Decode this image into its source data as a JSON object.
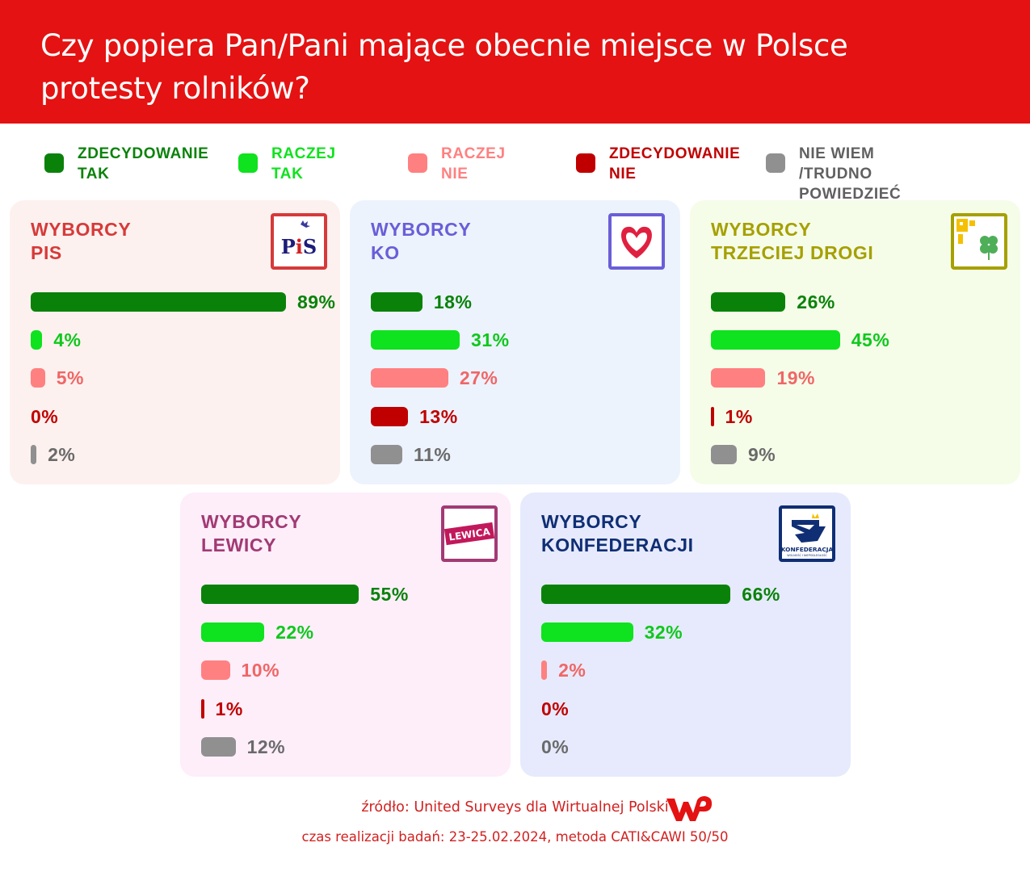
{
  "title": "Czy popiera Pan/Pani mające obecnie miejsce w Polsce protesty rolników?",
  "colors": {
    "header_bg": "#e41212",
    "zdecydowanie_tak": "#0a820a",
    "raczej_tak": "#0fe21e",
    "raczej_nie": "#ff8080",
    "zdecydowanie_nie": "#c00000",
    "nie_wiem": "#909090"
  },
  "legend": [
    {
      "label": "ZDECYDOWANIE\nTAK",
      "color": "#0a820a"
    },
    {
      "label": "RACZEJ\nTAK",
      "color": "#0fe21e"
    },
    {
      "label": "RACZEJ\nNIE",
      "color": "#ff8080"
    },
    {
      "label": "ZDECYDOWANIE\nNIE",
      "color": "#c00000"
    },
    {
      "label": "NIE WIEM\n/TRUDNO POWIEDZIEĆ",
      "color": "#909090"
    }
  ],
  "chart_data": [
    {
      "type": "bar",
      "title": "WYBORCY PIS",
      "title_lines": [
        "WYBORCY",
        "PIS"
      ],
      "logo": "PiS",
      "accent": "#d63a3a",
      "background": "#fdf1ef",
      "categories": [
        "ZDECYDOWANIE TAK",
        "RACZEJ TAK",
        "RACZEJ NIE",
        "ZDECYDOWANIE NIE",
        "NIE WIEM /TRUDNO POWIEDZIEĆ"
      ],
      "values": [
        89,
        4,
        5,
        0,
        2
      ],
      "labels": [
        "89%",
        "4%",
        "5%",
        "0%",
        "2%"
      ],
      "unit": "%"
    },
    {
      "type": "bar",
      "title": "WYBORCY KO",
      "title_lines": [
        "WYBORCY",
        "KO"
      ],
      "logo": "heart-logo",
      "accent": "#6a5ed8",
      "background": "#ecf3fd",
      "categories": [
        "ZDECYDOWANIE TAK",
        "RACZEJ TAK",
        "RACZEJ NIE",
        "ZDECYDOWANIE NIE",
        "NIE WIEM /TRUDNO POWIEDZIEĆ"
      ],
      "values": [
        18,
        31,
        27,
        13,
        11
      ],
      "labels": [
        "18%",
        "31%",
        "27%",
        "13%",
        "11%"
      ],
      "unit": "%"
    },
    {
      "type": "bar",
      "title": "WYBORCY TRZECIEJ DROGI",
      "title_lines": [
        "WYBORCY",
        "TRZECIEJ DROGI"
      ],
      "logo": "clover-logo",
      "accent": "#a6a000",
      "background": "#f5fde9",
      "categories": [
        "ZDECYDOWANIE TAK",
        "RACZEJ TAK",
        "RACZEJ NIE",
        "ZDECYDOWANIE NIE",
        "NIE WIEM /TRUDNO POWIEDZIEĆ"
      ],
      "values": [
        26,
        45,
        19,
        1,
        9
      ],
      "labels": [
        "26%",
        "45%",
        "19%",
        "1%",
        "9%"
      ],
      "unit": "%"
    },
    {
      "type": "bar",
      "title": "WYBORCY LEWICY",
      "title_lines": [
        "WYBORCY",
        "LEWICY"
      ],
      "logo": "LEWICA",
      "accent": "#a23a74",
      "background": "#fdeefa",
      "categories": [
        "ZDECYDOWANIE TAK",
        "RACZEJ TAK",
        "RACZEJ NIE",
        "ZDECYDOWANIE NIE",
        "NIE WIEM /TRUDNO POWIEDZIEĆ"
      ],
      "values": [
        55,
        22,
        10,
        1,
        12
      ],
      "labels": [
        "55%",
        "22%",
        "10%",
        "1%",
        "12%"
      ],
      "unit": "%"
    },
    {
      "type": "bar",
      "title": "WYBORCY KONFEDERACJI",
      "title_lines": [
        "WYBORCY",
        "KONFEDERACJI"
      ],
      "logo": "KONFEDERACJA",
      "accent": "#0f2e74",
      "background": "#e6eafc",
      "categories": [
        "ZDECYDOWANIE TAK",
        "RACZEJ TAK",
        "RACZEJ NIE",
        "ZDECYDOWANIE NIE",
        "NIE WIEM /TRUDNO POWIEDZIEĆ"
      ],
      "values": [
        66,
        32,
        2,
        0,
        0
      ],
      "labels": [
        "66%",
        "32%",
        "2%",
        "0%",
        "0%"
      ],
      "unit": "%"
    }
  ],
  "footer": {
    "source": "źródło: United Surveys dla Wirtualnej Polski",
    "method": "czas realizacji badań: 23-25.02.2024, metoda CATI&CAWI 50/50",
    "brand_logo": "WP"
  }
}
